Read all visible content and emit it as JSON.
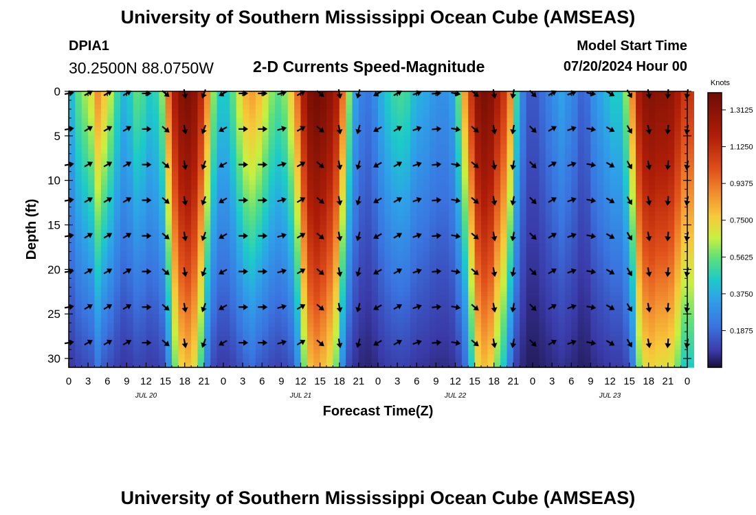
{
  "header": {
    "title": "University of Southern Mississippi Ocean Cube (AMSEAS)",
    "station": "DPIA1",
    "location": "30.2500N  88.0750W",
    "plot_title": "2-D Currents Speed-Magnitude",
    "model_start_label": "Model Start Time",
    "model_start_value": "07/20/2024 Hour 00"
  },
  "footer": {
    "title": "University of Southern Mississippi Ocean Cube (AMSEAS)"
  },
  "chart_data": {
    "type": "heatmap",
    "title": "2-D Currents Speed-Magnitude",
    "xlabel": "Forecast Time(Z)",
    "ylabel": "Depth (ft)",
    "xlim": [
      0,
      96
    ],
    "ylim": [
      31,
      0
    ],
    "x_tick_labels": [
      "0",
      "3",
      "6",
      "9",
      "12",
      "15",
      "18",
      "21",
      "0",
      "3",
      "6",
      "9",
      "12",
      "15",
      "18",
      "21",
      "0",
      "3",
      "6",
      "9",
      "12",
      "15",
      "18",
      "21",
      "0",
      "3",
      "6",
      "9",
      "12",
      "15",
      "18",
      "21",
      "0"
    ],
    "y_ticks": [
      0,
      5,
      10,
      15,
      20,
      25,
      30
    ],
    "day_labels": [
      {
        "text": "JUL 20",
        "hour": 12
      },
      {
        "text": "JUL 21",
        "hour": 36
      },
      {
        "text": "JUL 22",
        "hour": 60
      },
      {
        "text": "JUL 23",
        "hour": 84
      }
    ],
    "colorbar": {
      "unit": "Knots",
      "min": 0,
      "max": 1.4,
      "ticks": [
        "1.3125",
        "1.1250",
        "0.9375",
        "0.7500",
        "0.5625",
        "0.3750",
        "0.1875"
      ],
      "tick_values": [
        1.3125,
        1.125,
        0.9375,
        0.75,
        0.5625,
        0.375,
        0.1875
      ]
    },
    "speed_profile_hourly_surface": [
      0.42,
      0.55,
      0.62,
      0.7,
      0.88,
      0.78,
      0.65,
      0.5,
      0.4,
      0.45,
      0.55,
      0.52,
      0.45,
      0.48,
      0.6,
      0.95,
      1.2,
      1.32,
      1.35,
      1.3,
      1.15,
      0.9,
      0.6,
      0.45,
      0.45,
      0.55,
      0.7,
      0.82,
      0.85,
      0.8,
      0.7,
      0.6,
      0.55,
      0.6,
      0.75,
      0.95,
      1.2,
      1.35,
      1.38,
      1.35,
      1.3,
      1.2,
      0.95,
      0.6,
      0.35,
      0.25,
      0.22,
      0.28,
      0.38,
      0.45,
      0.5,
      0.52,
      0.5,
      0.42,
      0.38,
      0.36,
      0.32,
      0.3,
      0.3,
      0.35,
      0.55,
      0.85,
      1.1,
      1.3,
      1.35,
      1.32,
      1.2,
      1.1,
      0.9,
      0.5,
      0.25,
      0.15,
      0.15,
      0.2,
      0.25,
      0.3,
      0.35,
      0.3,
      0.25,
      0.18,
      0.2,
      0.3,
      0.35,
      0.4,
      0.45,
      0.45,
      0.6,
      0.9,
      1.2,
      1.3,
      1.32,
      1.3,
      1.3,
      1.28,
      1.2,
      1.1,
      1.1
    ],
    "arrow_depths_ft": [
      0,
      4,
      8,
      12,
      16,
      20,
      24,
      28
    ],
    "arrow_hours": [
      0,
      3,
      6,
      9,
      12,
      15,
      18,
      21,
      24,
      27,
      30,
      33,
      36,
      39,
      42,
      45,
      48,
      51,
      54,
      57,
      60,
      63,
      66,
      69,
      72,
      75,
      78,
      81,
      84,
      87,
      90,
      93,
      96
    ],
    "arrow_direction_deg_by_hour": [
      80,
      60,
      60,
      60,
      90,
      130,
      170,
      200,
      240,
      90,
      90,
      75,
      60,
      130,
      170,
      195,
      240,
      60,
      70,
      85,
      100,
      130,
      170,
      190,
      135,
      60,
      70,
      100,
      120,
      150,
      170,
      185,
      190
    ]
  }
}
